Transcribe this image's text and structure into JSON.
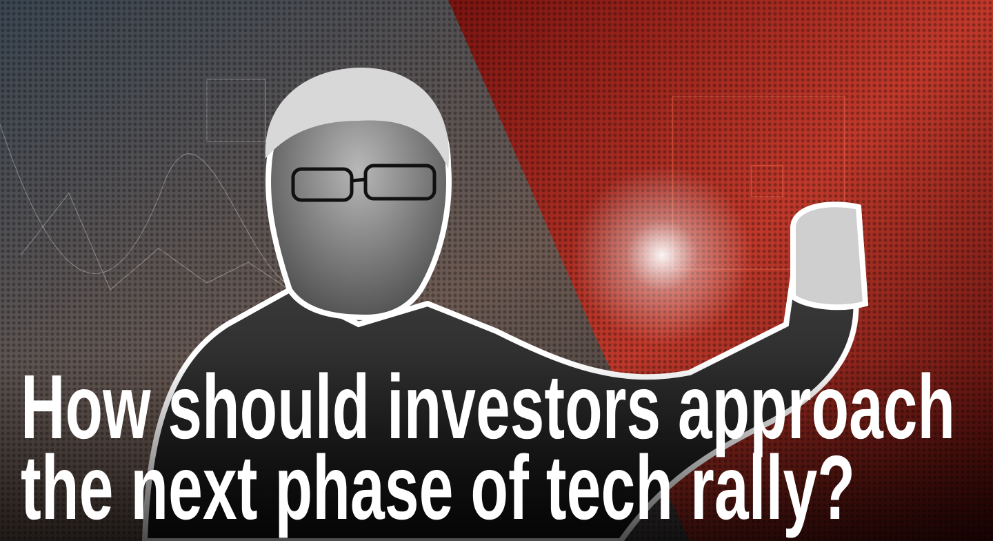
{
  "headline": {
    "lines": [
      "How should investors approach",
      "the next phase of tech rally?"
    ]
  }
}
